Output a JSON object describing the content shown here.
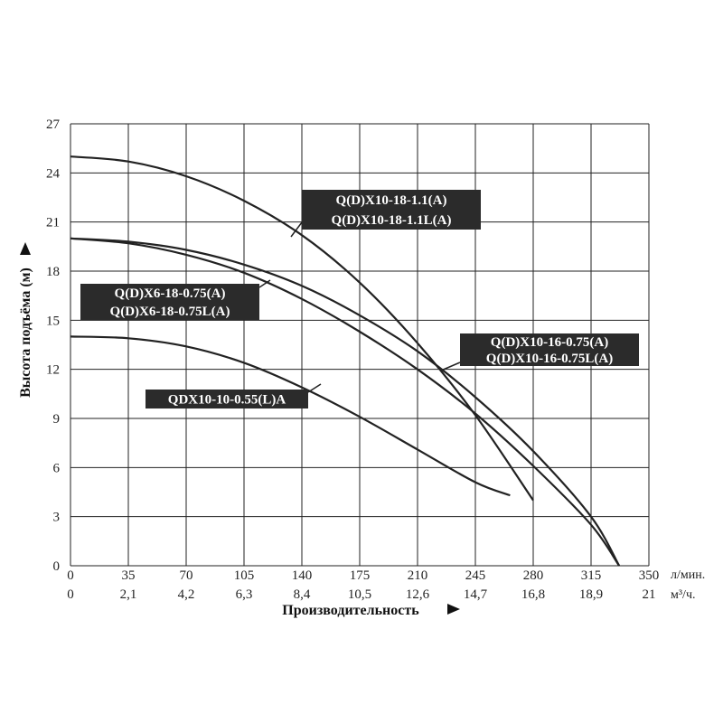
{
  "chart_data": {
    "type": "line",
    "ylabel": "Высота подъёма (м)",
    "xlabel": "Производительность",
    "x_unit_primary": "л/мин.",
    "x_unit_secondary": "м³/ч.",
    "xlim": [
      0,
      350
    ],
    "ylim": [
      0,
      27
    ],
    "grid": true,
    "x_ticks_primary": [
      "0",
      "35",
      "70",
      "105",
      "140",
      "175",
      "210",
      "245",
      "280",
      "315",
      "350"
    ],
    "x_ticks_secondary": [
      "0",
      "2,1",
      "4,2",
      "6,3",
      "8,4",
      "10,5",
      "12,6",
      "14,7",
      "16,8",
      "18,9",
      "21"
    ],
    "y_ticks": [
      "0",
      "3",
      "6",
      "9",
      "12",
      "15",
      "18",
      "21",
      "24",
      "27"
    ],
    "series": [
      {
        "name": "Q(D)X10-18-1.1(A) / Q(D)X10-18-1.1L(A)",
        "labels": [
          "Q(D)X10-18-1.1(A)",
          "Q(D)X10-18-1.1L(A)"
        ],
        "x": [
          0,
          35,
          70,
          105,
          140,
          175,
          210,
          245,
          280
        ],
        "y": [
          25,
          24.7,
          23.8,
          22.3,
          20.2,
          17.3,
          13.6,
          9.2,
          4
        ]
      },
      {
        "name": "Q(D)X6-18-0.75(A) / Q(D)X6-18-0.75L(A)",
        "labels": [
          "Q(D)X6-18-0.75(A)",
          "Q(D)X6-18-0.75L(A)"
        ],
        "x": [
          0,
          35,
          70,
          105,
          140,
          175,
          210,
          245,
          280,
          315,
          332
        ],
        "y": [
          20,
          19.8,
          19.3,
          18.4,
          17.1,
          15.3,
          13.1,
          10.3,
          7,
          3,
          0
        ]
      },
      {
        "name": "Q(D)X10-16-0.75(A) / Q(D)X10-16-0.75L(A)",
        "labels": [
          "Q(D)X10-16-0.75(A)",
          "Q(D)X10-16-0.75L(A)"
        ],
        "x": [
          0,
          35,
          70,
          105,
          140,
          175,
          210,
          245,
          280,
          315,
          332
        ],
        "y": [
          20,
          19.7,
          19,
          17.9,
          16.3,
          14.3,
          12,
          9.3,
          6.1,
          2.5,
          0
        ]
      },
      {
        "name": "QDX10-10-0.55(L)A",
        "labels": [
          "QDX10-10-0.55(L)A"
        ],
        "x": [
          0,
          35,
          70,
          105,
          140,
          175,
          210,
          245,
          266
        ],
        "y": [
          14,
          13.9,
          13.4,
          12.4,
          10.9,
          9.1,
          7.1,
          5.1,
          4.3
        ]
      }
    ]
  }
}
